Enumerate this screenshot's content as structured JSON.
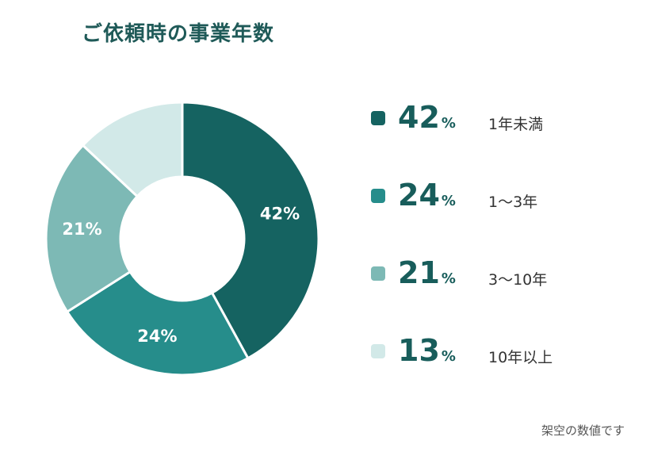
{
  "title": "ご依頼時の事業年数",
  "footnote": "架空の数値です",
  "colors": {
    "title": "#1f5a58",
    "percent_text": "#185d5b",
    "background": "#ffffff"
  },
  "chart_data": {
    "type": "pie",
    "title": "ご依頼時の事業年数",
    "donut": true,
    "unit": "%",
    "slices": [
      {
        "label": "1年未満",
        "value": 42,
        "color": "#156361",
        "label_color": "#ffffff"
      },
      {
        "label": "1〜3年",
        "value": 24,
        "color": "#268d8b",
        "label_color": "#ffffff"
      },
      {
        "label": "3〜10年",
        "value": 21,
        "color": "#7db9b5",
        "label_color": "#ffffff"
      },
      {
        "label": "10年以上",
        "value": 13,
        "color": "#d2e9e8",
        "label_color": null
      }
    ],
    "legend_position": "right"
  }
}
